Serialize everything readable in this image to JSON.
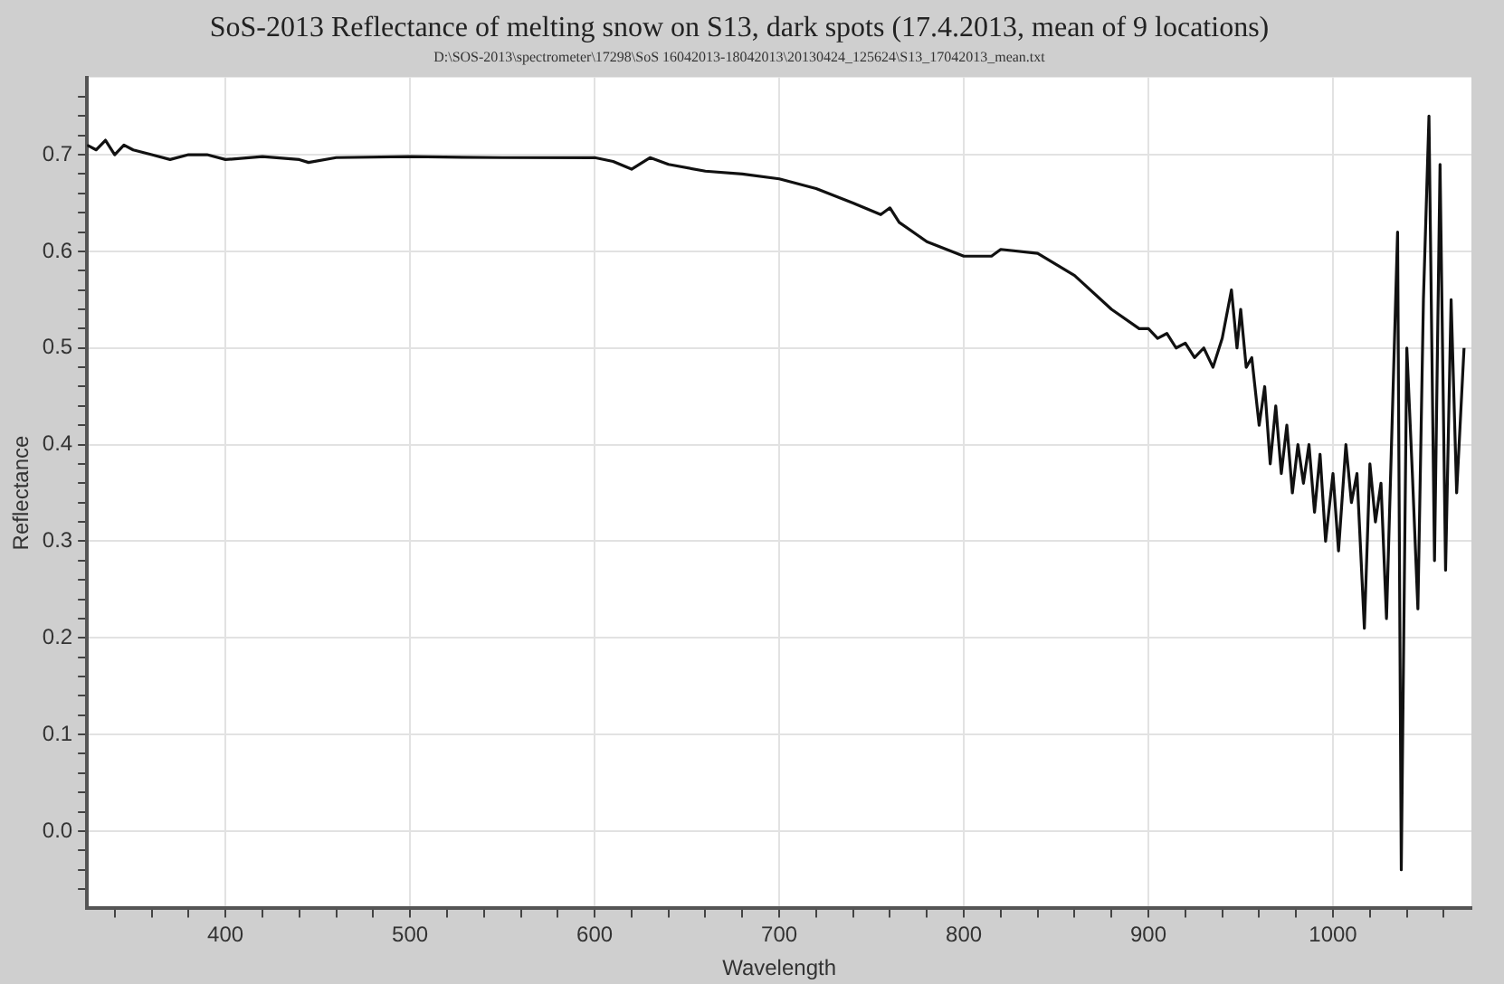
{
  "chart_data": {
    "type": "line",
    "title": "SoS-2013 Reflectance of melting snow on S13, dark spots (17.4.2013, mean of 9 locations)",
    "subtitle": "D:\\SOS-2013\\spectrometer\\17298\\SoS 16042013-18042013\\20130424_125624\\S13_17042013_mean.txt",
    "xlabel": "Wavelength",
    "ylabel": "Reflectance",
    "series": [
      {
        "color": "#111111",
        "x": [
          325,
          330,
          335,
          340,
          345,
          350,
          360,
          370,
          380,
          390,
          400,
          420,
          440,
          445,
          460,
          500,
          550,
          600,
          610,
          620,
          630,
          640,
          660,
          680,
          700,
          720,
          740,
          755,
          760,
          765,
          780,
          800,
          815,
          820,
          840,
          860,
          880,
          895,
          900,
          905,
          910,
          915,
          920,
          925,
          930,
          935,
          940,
          945,
          948,
          950,
          953,
          956,
          960,
          963,
          966,
          969,
          972,
          975,
          978,
          981,
          984,
          987,
          990,
          993,
          996,
          1000,
          1003,
          1007,
          1010,
          1013,
          1017,
          1020,
          1023,
          1026,
          1029,
          1032,
          1035,
          1037,
          1040,
          1043,
          1046,
          1049,
          1052,
          1055,
          1058,
          1061,
          1064,
          1067,
          1071
        ],
        "values": [
          0.71,
          0.705,
          0.715,
          0.7,
          0.71,
          0.705,
          0.7,
          0.695,
          0.7,
          0.7,
          0.695,
          0.698,
          0.695,
          0.692,
          0.697,
          0.698,
          0.697,
          0.697,
          0.693,
          0.685,
          0.697,
          0.69,
          0.683,
          0.68,
          0.675,
          0.665,
          0.65,
          0.638,
          0.645,
          0.63,
          0.61,
          0.595,
          0.595,
          0.602,
          0.598,
          0.575,
          0.54,
          0.52,
          0.52,
          0.51,
          0.515,
          0.5,
          0.505,
          0.49,
          0.5,
          0.48,
          0.51,
          0.56,
          0.5,
          0.54,
          0.48,
          0.49,
          0.42,
          0.46,
          0.38,
          0.44,
          0.37,
          0.42,
          0.35,
          0.4,
          0.36,
          0.4,
          0.33,
          0.39,
          0.3,
          0.37,
          0.29,
          0.4,
          0.34,
          0.37,
          0.21,
          0.38,
          0.32,
          0.36,
          0.22,
          0.42,
          0.62,
          -0.04,
          0.5,
          0.37,
          0.23,
          0.55,
          0.74,
          0.28,
          0.69,
          0.27,
          0.55,
          0.35,
          0.5
        ]
      }
    ],
    "xlim": [
      325,
      1075
    ],
    "xticks": [
      {
        "value": 340,
        "label": null
      },
      {
        "value": 360,
        "label": null
      },
      {
        "value": 380,
        "label": null
      },
      400,
      {
        "value": 420,
        "label": null
      },
      {
        "value": 440,
        "label": null
      },
      {
        "value": 460,
        "label": null
      },
      {
        "value": 480,
        "label": null
      },
      500,
      {
        "value": 520,
        "label": null
      },
      {
        "value": 540,
        "label": null
      },
      {
        "value": 560,
        "label": null
      },
      {
        "value": 580,
        "label": null
      },
      600,
      {
        "value": 620,
        "label": null
      },
      {
        "value": 640,
        "label": null
      },
      {
        "value": 660,
        "label": null
      },
      {
        "value": 680,
        "label": null
      },
      700,
      {
        "value": 720,
        "label": null
      },
      {
        "value": 740,
        "label": null
      },
      {
        "value": 760,
        "label": null
      },
      {
        "value": 780,
        "label": null
      },
      800,
      {
        "value": 820,
        "label": null
      },
      {
        "value": 840,
        "label": null
      },
      {
        "value": 860,
        "label": null
      },
      {
        "value": 880,
        "label": null
      },
      900,
      {
        "value": 920,
        "label": null
      },
      {
        "value": 940,
        "label": null
      },
      {
        "value": 960,
        "label": null
      },
      {
        "value": 980,
        "label": null
      },
      1000,
      {
        "value": 1020,
        "label": null
      },
      {
        "value": 1040,
        "label": null
      },
      {
        "value": 1060,
        "label": null
      }
    ],
    "ylim": [
      -0.08,
      0.78
    ],
    "yticks": [
      {
        "value": -0.06,
        "label": null
      },
      {
        "value": -0.04,
        "label": null
      },
      {
        "value": -0.02,
        "label": null
      },
      {
        "value": 0,
        "label": "0.0"
      },
      {
        "value": 0.02,
        "label": null
      },
      {
        "value": 0.04,
        "label": null
      },
      {
        "value": 0.06,
        "label": null
      },
      {
        "value": 0.08,
        "label": null
      },
      {
        "value": 0.1,
        "label": "0.1"
      },
      {
        "value": 0.12,
        "label": null
      },
      {
        "value": 0.14,
        "label": null
      },
      {
        "value": 0.16,
        "label": null
      },
      {
        "value": 0.18,
        "label": null
      },
      {
        "value": 0.2,
        "label": "0.2"
      },
      {
        "value": 0.22,
        "label": null
      },
      {
        "value": 0.24,
        "label": null
      },
      {
        "value": 0.26,
        "label": null
      },
      {
        "value": 0.28,
        "label": null
      },
      {
        "value": 0.3,
        "label": "0.3"
      },
      {
        "value": 0.32,
        "label": null
      },
      {
        "value": 0.34,
        "label": null
      },
      {
        "value": 0.36,
        "label": null
      },
      {
        "value": 0.38,
        "label": null
      },
      {
        "value": 0.4,
        "label": "0.4"
      },
      {
        "value": 0.42,
        "label": null
      },
      {
        "value": 0.44,
        "label": null
      },
      {
        "value": 0.46,
        "label": null
      },
      {
        "value": 0.48,
        "label": null
      },
      {
        "value": 0.5,
        "label": "0.5"
      },
      {
        "value": 0.52,
        "label": null
      },
      {
        "value": 0.54,
        "label": null
      },
      {
        "value": 0.56,
        "label": null
      },
      {
        "value": 0.58,
        "label": null
      },
      {
        "value": 0.6,
        "label": "0.6"
      },
      {
        "value": 0.62,
        "label": null
      },
      {
        "value": 0.64,
        "label": null
      },
      {
        "value": 0.66,
        "label": null
      },
      {
        "value": 0.68,
        "label": null
      },
      {
        "value": 0.7,
        "label": "0.7"
      },
      {
        "value": 0.72,
        "label": null
      },
      {
        "value": 0.74,
        "label": null
      },
      {
        "value": 0.76,
        "label": null
      }
    ],
    "grid": true,
    "marker": "none",
    "line_style": "solid"
  }
}
